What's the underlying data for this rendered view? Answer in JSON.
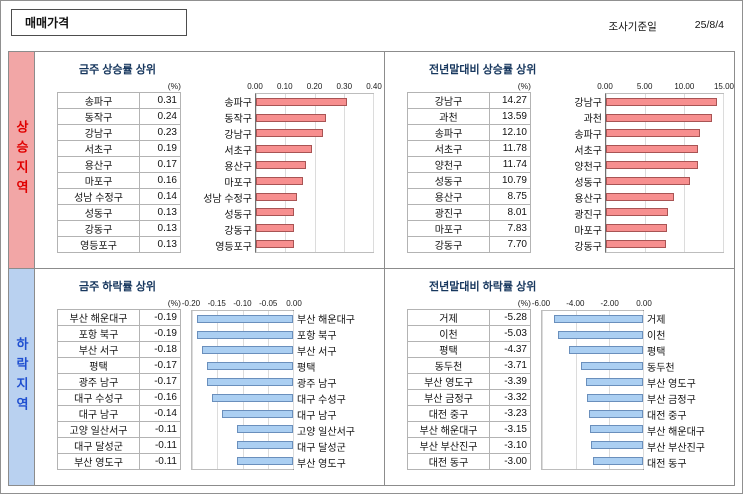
{
  "header": {
    "title": "매매가격",
    "survey_label": "조사기준일",
    "survey_date": "25/8/4"
  },
  "sections": {
    "rise": {
      "label": "상승지역",
      "text_color": "#e00000",
      "bg_color": "#f2a6a6"
    },
    "fall": {
      "label": "하락지역",
      "text_color": "#1f4fd0",
      "bg_color": "#b9d1f0"
    }
  },
  "chart_data": [
    {
      "type": "bar",
      "orientation": "horizontal",
      "direction": "positive",
      "title": "금주 상승률 상위",
      "unit": "(%)",
      "categories": [
        "송파구",
        "동작구",
        "강남구",
        "서초구",
        "용산구",
        "마포구",
        "성남 수정구",
        "성동구",
        "강동구",
        "영등포구"
      ],
      "values": [
        0.31,
        0.24,
        0.23,
        0.19,
        0.17,
        0.16,
        0.14,
        0.13,
        0.13,
        0.13
      ],
      "axis_min": 0,
      "axis_max": 0.4,
      "ticks": [
        "0.00",
        "0.10",
        "0.20",
        "0.30",
        "0.40"
      ],
      "grid": true,
      "bar_color": "#f78f8f",
      "bar_border": "#a85454"
    },
    {
      "type": "bar",
      "orientation": "horizontal",
      "direction": "positive",
      "title": "전년말대비 상승률 상위",
      "unit": "(%)",
      "categories": [
        "강남구",
        "과천",
        "송파구",
        "서초구",
        "양천구",
        "성동구",
        "용산구",
        "광진구",
        "마포구",
        "강동구"
      ],
      "values": [
        14.27,
        13.59,
        12.1,
        11.78,
        11.74,
        10.79,
        8.75,
        8.01,
        7.83,
        7.7
      ],
      "axis_min": 0,
      "axis_max": 15,
      "ticks": [
        "0.00",
        "5.00",
        "10.00",
        "15.00"
      ],
      "grid": true,
      "bar_color": "#f78f8f",
      "bar_border": "#a85454"
    },
    {
      "type": "bar",
      "orientation": "horizontal",
      "direction": "negative",
      "title": "금주 하락률 상위",
      "unit": "(%)",
      "categories": [
        "부산 해운대구",
        "포항 북구",
        "부산 서구",
        "평택",
        "광주 남구",
        "대구 수성구",
        "대구 남구",
        "고양 일산서구",
        "대구 달성군",
        "부산 영도구"
      ],
      "values": [
        -0.19,
        -0.19,
        -0.18,
        -0.17,
        -0.17,
        -0.16,
        -0.14,
        -0.11,
        -0.11,
        -0.11
      ],
      "axis_min": -0.2,
      "axis_max": 0,
      "ticks": [
        "-0.20",
        "-0.15",
        "-0.10",
        "-0.05",
        "0.00"
      ],
      "grid": true,
      "bar_color": "#abcff2",
      "bar_border": "#6a8fbc"
    },
    {
      "type": "bar",
      "orientation": "horizontal",
      "direction": "negative",
      "title": "전년말대비 하락률 상위",
      "unit": "(%)",
      "categories": [
        "거제",
        "이천",
        "평택",
        "동두천",
        "부산 영도구",
        "부산 금정구",
        "대전 중구",
        "부산 해운대구",
        "부산 부산진구",
        "대전 동구"
      ],
      "values": [
        -5.28,
        -5.03,
        -4.37,
        -3.71,
        -3.39,
        -3.32,
        -3.23,
        -3.15,
        -3.1,
        -3.0
      ],
      "axis_min": -6.0,
      "axis_max": 0,
      "ticks": [
        "-6.00",
        "-4.00",
        "-2.00",
        "0.00"
      ],
      "grid": true,
      "bar_color": "#abcff2",
      "bar_border": "#6a8fbc"
    }
  ]
}
